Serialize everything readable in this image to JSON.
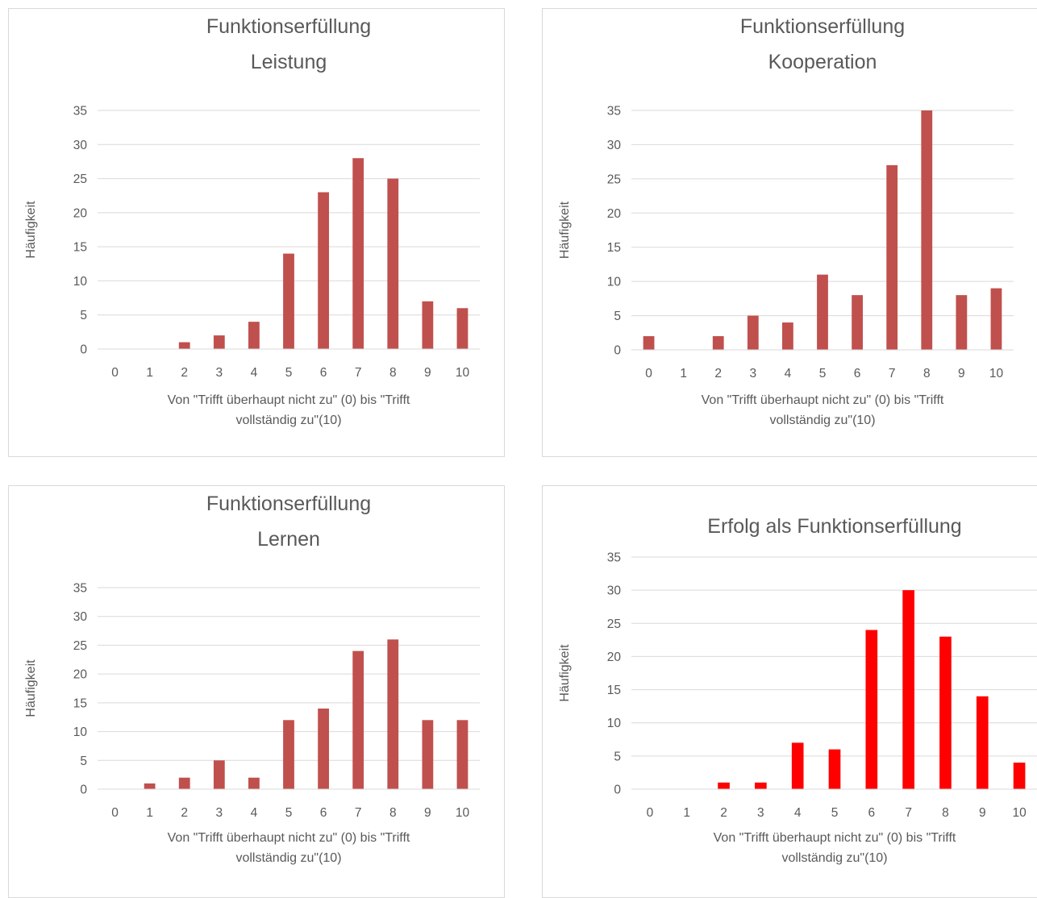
{
  "chart_data": [
    {
      "type": "bar",
      "title_lines": [
        "Funktionserfüllung",
        "Leistung"
      ],
      "ylabel": "Häufigkeit",
      "xlabel_lines": [
        "Von \"Trifft überhaupt nicht zu\" (0) bis \"Trifft",
        "vollständig zu\"(10)"
      ],
      "categories": [
        "0",
        "1",
        "2",
        "3",
        "4",
        "5",
        "6",
        "7",
        "8",
        "9",
        "10"
      ],
      "values": [
        0,
        0,
        1,
        2,
        4,
        14,
        23,
        28,
        25,
        7,
        6
      ],
      "ylim": [
        0,
        35
      ],
      "yticks": [
        "0",
        "5",
        "10",
        "15",
        "20",
        "25",
        "30",
        "35"
      ],
      "bar_color": "#c0504d",
      "grid": true
    },
    {
      "type": "bar",
      "title_lines": [
        "Funktionserfüllung",
        "Kooperation"
      ],
      "ylabel": "Häufigkeit",
      "xlabel_lines": [
        "Von \"Trifft überhaupt nicht zu\" (0) bis \"Trifft",
        "vollständig zu\"(10)"
      ],
      "categories": [
        "0",
        "1",
        "2",
        "3",
        "4",
        "5",
        "6",
        "7",
        "8",
        "9",
        "10"
      ],
      "values": [
        2,
        0,
        2,
        5,
        4,
        11,
        8,
        27,
        35,
        8,
        9
      ],
      "ylim": [
        0,
        35
      ],
      "yticks": [
        "0",
        "5",
        "10",
        "15",
        "20",
        "25",
        "30",
        "35"
      ],
      "bar_color": "#c0504d",
      "grid": true
    },
    {
      "type": "bar",
      "title_lines": [
        "Funktionserfüllung",
        "Lernen"
      ],
      "ylabel": "Häufigkeit",
      "xlabel_lines": [
        "Von \"Trifft überhaupt nicht zu\" (0) bis \"Trifft",
        "vollständig zu\"(10)"
      ],
      "categories": [
        "0",
        "1",
        "2",
        "3",
        "4",
        "5",
        "6",
        "7",
        "8",
        "9",
        "10"
      ],
      "values": [
        0,
        1,
        2,
        5,
        2,
        12,
        14,
        24,
        26,
        12,
        12
      ],
      "ylim": [
        0,
        35
      ],
      "yticks": [
        "0",
        "5",
        "10",
        "15",
        "20",
        "25",
        "30",
        "35"
      ],
      "bar_color": "#c0504d",
      "grid": true
    },
    {
      "type": "bar",
      "title_lines": [
        "Erfolg als Funktionserfüllung"
      ],
      "ylabel": "Häufigkeit",
      "xlabel_lines": [
        "Von \"Trifft überhaupt nicht zu\" (0) bis \"Trifft",
        "vollständig zu\"(10)"
      ],
      "categories": [
        "0",
        "1",
        "2",
        "3",
        "4",
        "5",
        "6",
        "7",
        "8",
        "9",
        "10"
      ],
      "values": [
        0,
        0,
        1,
        1,
        7,
        6,
        24,
        30,
        23,
        14,
        4
      ],
      "ylim": [
        0,
        35
      ],
      "yticks": [
        "0",
        "5",
        "10",
        "15",
        "20",
        "25",
        "30",
        "35"
      ],
      "bar_color": "#ff0000",
      "grid": true
    }
  ]
}
